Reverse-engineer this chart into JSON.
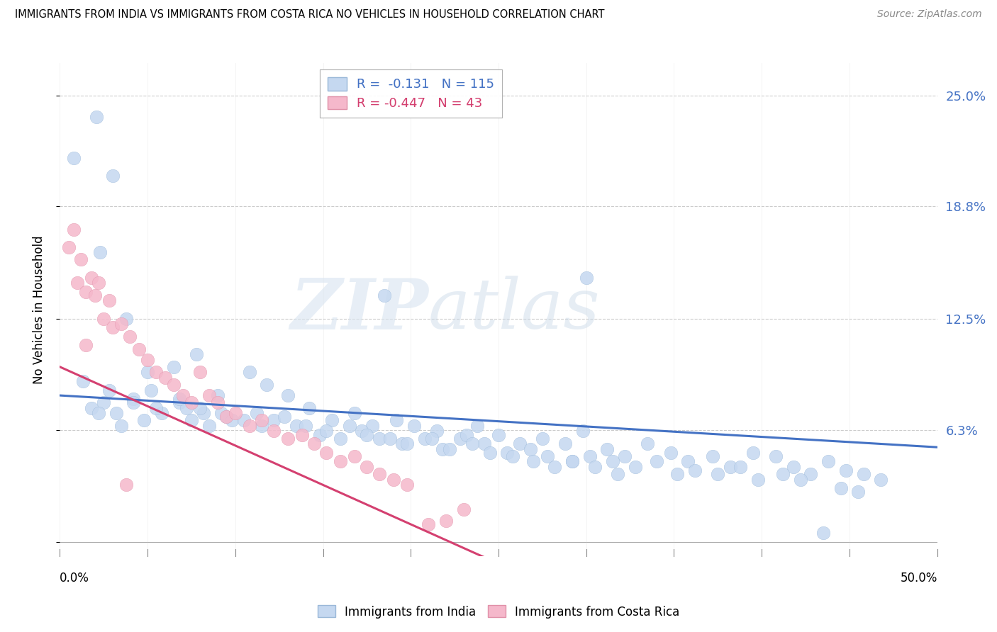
{
  "title": "IMMIGRANTS FROM INDIA VS IMMIGRANTS FROM COSTA RICA NO VEHICLES IN HOUSEHOLD CORRELATION CHART",
  "source": "Source: ZipAtlas.com",
  "ylabel": "No Vehicles in Household",
  "india_color": "#c5d8f0",
  "india_line_color": "#4472c4",
  "costa_rica_color": "#f5b8cb",
  "costa_rica_line_color": "#d44070",
  "india_R": -0.131,
  "india_N": 115,
  "costa_rica_R": -0.447,
  "costa_rica_N": 43,
  "watermark_zip": "ZIP",
  "watermark_atlas": "atlas",
  "xlim": [
    0.0,
    0.5
  ],
  "ylim": [
    -0.008,
    0.268
  ],
  "ytick_values": [
    0.0,
    0.0625,
    0.125,
    0.188,
    0.25
  ],
  "ytick_labels": [
    "",
    "6.3%",
    "12.5%",
    "18.8%",
    "25.0%"
  ],
  "india_line_x0": 0.0,
  "india_line_x1": 0.5,
  "india_line_y0": 0.082,
  "india_line_y1": 0.053,
  "cr_line_x0": 0.0,
  "cr_line_x1": 0.245,
  "cr_line_y0": 0.098,
  "cr_line_y1": -0.01,
  "india_x": [
    0.008,
    0.021,
    0.03,
    0.185,
    0.3,
    0.435,
    0.023,
    0.038,
    0.05,
    0.065,
    0.078,
    0.09,
    0.013,
    0.018,
    0.025,
    0.032,
    0.042,
    0.052,
    0.068,
    0.075,
    0.082,
    0.095,
    0.108,
    0.118,
    0.13,
    0.142,
    0.155,
    0.168,
    0.178,
    0.192,
    0.202,
    0.215,
    0.228,
    0.238,
    0.25,
    0.262,
    0.275,
    0.288,
    0.298,
    0.312,
    0.322,
    0.335,
    0.348,
    0.358,
    0.372,
    0.382,
    0.395,
    0.408,
    0.418,
    0.428,
    0.438,
    0.448,
    0.458,
    0.468,
    0.022,
    0.035,
    0.048,
    0.058,
    0.072,
    0.085,
    0.098,
    0.112,
    0.122,
    0.135,
    0.148,
    0.16,
    0.172,
    0.182,
    0.195,
    0.208,
    0.218,
    0.232,
    0.242,
    0.255,
    0.268,
    0.278,
    0.292,
    0.302,
    0.315,
    0.328,
    0.34,
    0.352,
    0.362,
    0.375,
    0.388,
    0.398,
    0.412,
    0.422,
    0.445,
    0.455,
    0.028,
    0.042,
    0.055,
    0.068,
    0.08,
    0.092,
    0.105,
    0.115,
    0.128,
    0.14,
    0.152,
    0.165,
    0.175,
    0.188,
    0.198,
    0.212,
    0.222,
    0.235,
    0.245,
    0.258,
    0.27,
    0.282,
    0.292,
    0.305,
    0.318
  ],
  "india_y": [
    0.215,
    0.238,
    0.205,
    0.138,
    0.148,
    0.005,
    0.162,
    0.125,
    0.095,
    0.098,
    0.105,
    0.082,
    0.09,
    0.075,
    0.078,
    0.072,
    0.08,
    0.085,
    0.078,
    0.068,
    0.072,
    0.07,
    0.095,
    0.088,
    0.082,
    0.075,
    0.068,
    0.072,
    0.065,
    0.068,
    0.065,
    0.062,
    0.058,
    0.065,
    0.06,
    0.055,
    0.058,
    0.055,
    0.062,
    0.052,
    0.048,
    0.055,
    0.05,
    0.045,
    0.048,
    0.042,
    0.05,
    0.048,
    0.042,
    0.038,
    0.045,
    0.04,
    0.038,
    0.035,
    0.072,
    0.065,
    0.068,
    0.072,
    0.075,
    0.065,
    0.068,
    0.072,
    0.068,
    0.065,
    0.06,
    0.058,
    0.062,
    0.058,
    0.055,
    0.058,
    0.052,
    0.06,
    0.055,
    0.05,
    0.052,
    0.048,
    0.045,
    0.048,
    0.045,
    0.042,
    0.045,
    0.038,
    0.04,
    0.038,
    0.042,
    0.035,
    0.038,
    0.035,
    0.03,
    0.028,
    0.085,
    0.078,
    0.075,
    0.08,
    0.075,
    0.072,
    0.068,
    0.065,
    0.07,
    0.065,
    0.062,
    0.065,
    0.06,
    0.058,
    0.055,
    0.058,
    0.052,
    0.055,
    0.05,
    0.048,
    0.045,
    0.042,
    0.045,
    0.042,
    0.038
  ],
  "cr_x": [
    0.005,
    0.01,
    0.015,
    0.02,
    0.025,
    0.03,
    0.008,
    0.012,
    0.018,
    0.022,
    0.028,
    0.035,
    0.04,
    0.045,
    0.05,
    0.055,
    0.06,
    0.065,
    0.07,
    0.075,
    0.08,
    0.085,
    0.09,
    0.095,
    0.1,
    0.108,
    0.115,
    0.122,
    0.13,
    0.138,
    0.145,
    0.152,
    0.16,
    0.168,
    0.175,
    0.182,
    0.19,
    0.198,
    0.21,
    0.22,
    0.23,
    0.015,
    0.038
  ],
  "cr_y": [
    0.165,
    0.145,
    0.14,
    0.138,
    0.125,
    0.12,
    0.175,
    0.158,
    0.148,
    0.145,
    0.135,
    0.122,
    0.115,
    0.108,
    0.102,
    0.095,
    0.092,
    0.088,
    0.082,
    0.078,
    0.095,
    0.082,
    0.078,
    0.07,
    0.072,
    0.065,
    0.068,
    0.062,
    0.058,
    0.06,
    0.055,
    0.05,
    0.045,
    0.048,
    0.042,
    0.038,
    0.035,
    0.032,
    0.01,
    0.012,
    0.018,
    0.11,
    0.032
  ]
}
